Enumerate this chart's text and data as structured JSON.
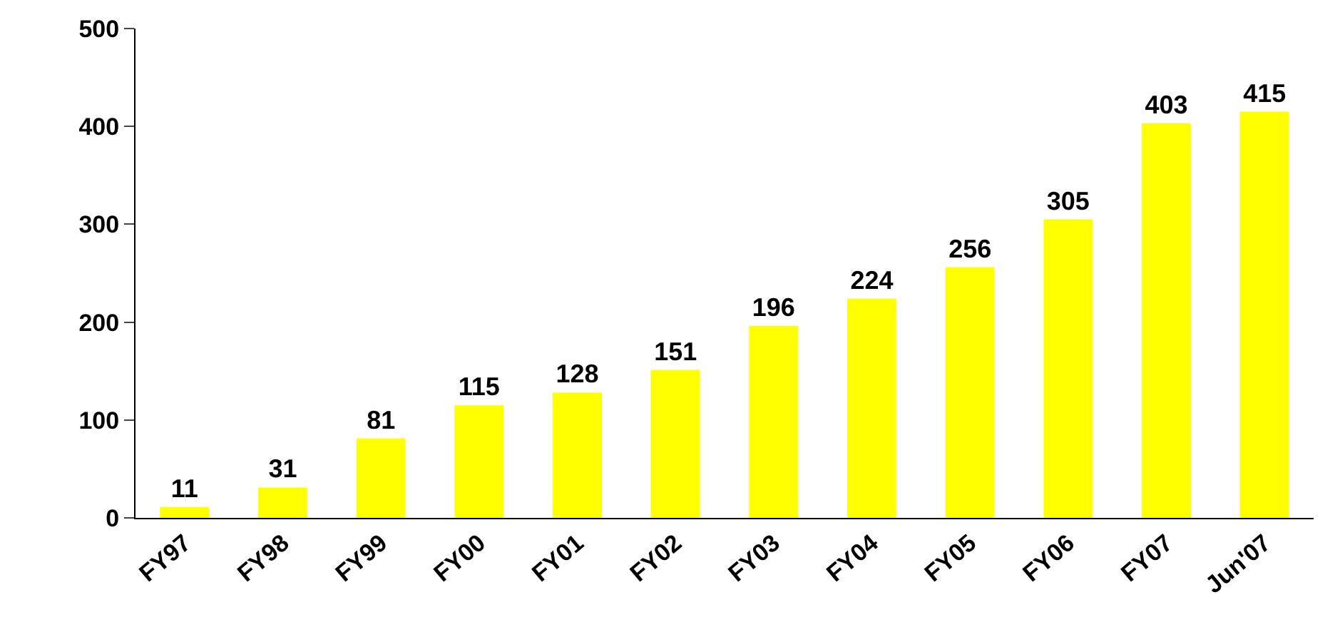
{
  "chart_data": {
    "type": "bar",
    "categories": [
      "FY97",
      "FY98",
      "FY99",
      "FY00",
      "FY01",
      "FY02",
      "FY03",
      "FY04",
      "FY05",
      "FY06",
      "FY07",
      "Jun'07"
    ],
    "values": [
      11,
      31,
      81,
      115,
      128,
      151,
      196,
      224,
      256,
      305,
      403,
      415
    ],
    "color": "#ffff00",
    "ylim": [
      0,
      500
    ],
    "yticks": [
      0,
      100,
      200,
      300,
      400,
      500
    ],
    "grid": false,
    "data_labels": true
  }
}
